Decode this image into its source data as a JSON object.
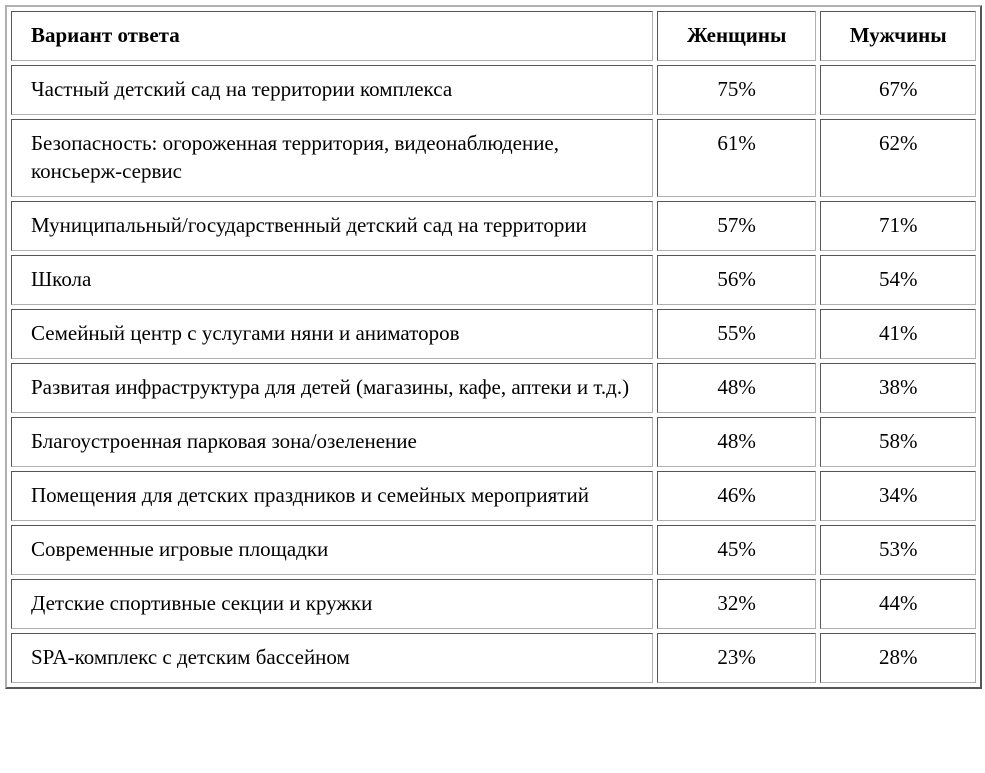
{
  "headers": [
    "Вариант ответа",
    "Женщины",
    "Мужчины"
  ],
  "rows": [
    {
      "option": "Частный детский сад на территории комплекса",
      "women": "75%",
      "men": "67%"
    },
    {
      "option": "Безопасность: огороженная территория, видеонаблюдение, консьерж-сервис",
      "women": "61%",
      "men": "62%"
    },
    {
      "option": "Муниципальный/государственный детский сад на территории",
      "women": "57%",
      "men": "71%"
    },
    {
      "option": "Школа",
      "women": "56%",
      "men": "54%"
    },
    {
      "option": "Семейный центр с услугами няни и аниматоров",
      "women": "55%",
      "men": "41%"
    },
    {
      "option": "Развитая инфраструктура для детей (магазины, кафе, аптеки и т.д.)",
      "women": "48%",
      "men": "38%"
    },
    {
      "option": "Благоустроенная парковая зона/озеленение",
      "women": "48%",
      "men": "58%"
    },
    {
      "option": "Помещения для детских праздников и семейных мероприятий",
      "women": "46%",
      "men": "34%"
    },
    {
      "option": "Современные игровые площадки",
      "women": "45%",
      "men": "53%"
    },
    {
      "option": "Детские спортивные секции и кружки",
      "women": "32%",
      "men": "44%"
    },
    {
      "option": "SPA-комплекс с детским бассейном",
      "women": "23%",
      "men": "28%"
    }
  ]
}
